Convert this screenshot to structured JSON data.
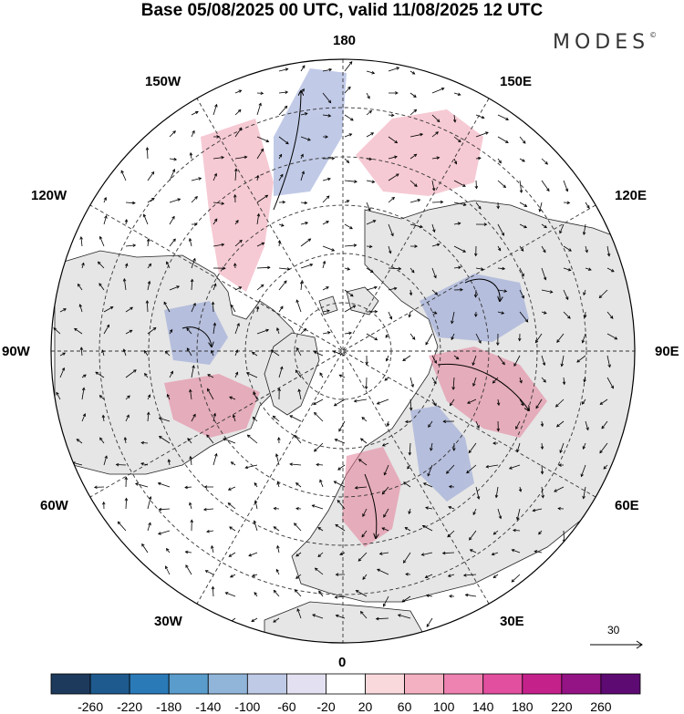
{
  "title": "Base 05/08/2025 00 UTC, valid 11/08/2025 12 UTC",
  "brand": "MODES",
  "brand_mark": "©",
  "longitude_labels": {
    "lon_180": "180",
    "lon_150e": "150E",
    "lon_120e": "120E",
    "lon_90e": "90E",
    "lon_60e": "60E",
    "lon_30e": "30E",
    "lon_0": "0",
    "lon_30w": "30W",
    "lon_60w": "60W",
    "lon_90w": "90W",
    "lon_120w": "120W",
    "lon_150w": "150W"
  },
  "reference_vector": {
    "value": "30"
  },
  "colorbar": {
    "colors": [
      "#1d3a5c",
      "#1f5a8f",
      "#2a7ab8",
      "#5a9ccc",
      "#91b5d9",
      "#bfcbe6",
      "#e3e1f1",
      "#ffffff",
      "#f9d9dc",
      "#f4b1c2",
      "#ee82b0",
      "#e24f9f",
      "#c4218b",
      "#941385",
      "#5e0a73"
    ],
    "labels": [
      "-260",
      "-220",
      "-180",
      "-140",
      "-100",
      "-60",
      "-20",
      "20",
      "60",
      "100",
      "140",
      "180",
      "220",
      "260"
    ]
  },
  "anomaly_palette": {
    "positive": "#e9a8b4",
    "negative": "#9aa8d6",
    "land": "#e6e6e6"
  }
}
